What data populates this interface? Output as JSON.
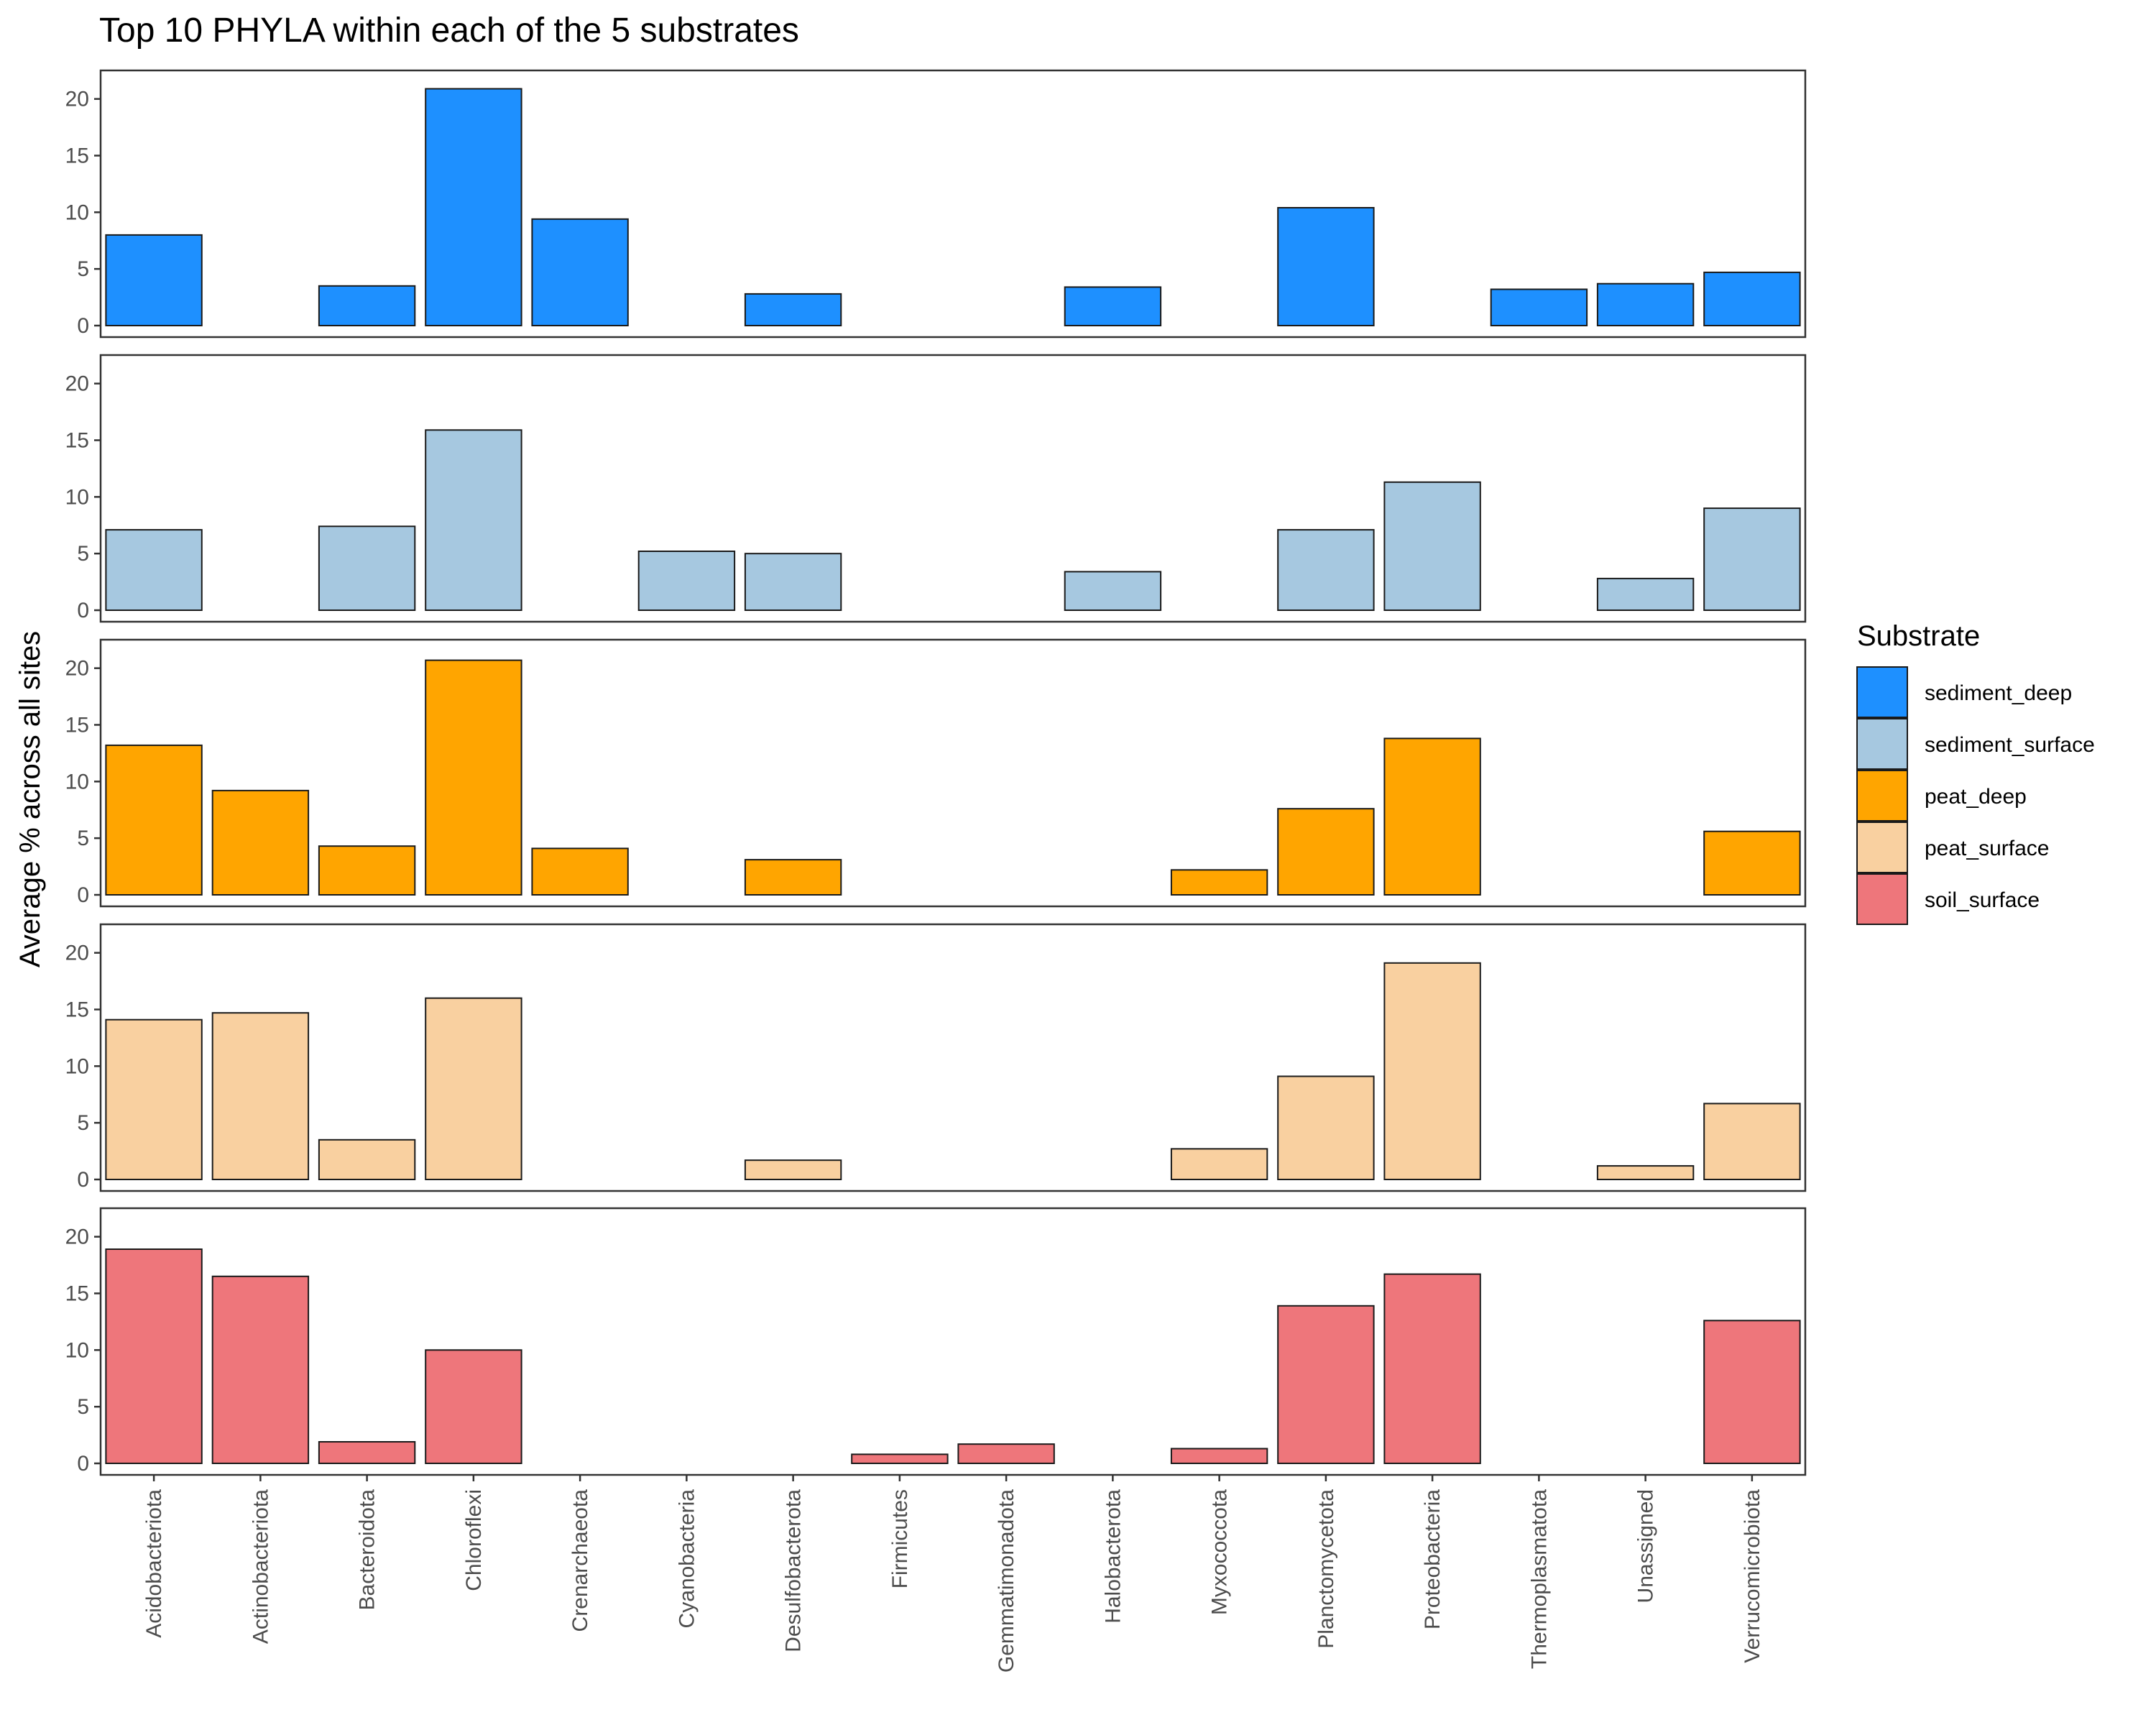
{
  "chart_data": {
    "type": "bar",
    "title": "Top 10 PHYLA within each of the 5 substrates",
    "xlabel": "",
    "ylabel": "Average % across all sites",
    "ylim": [
      0,
      21.5
    ],
    "yticks": [
      0,
      5,
      10,
      15,
      20
    ],
    "grid": false,
    "legend": {
      "title": "Substrate",
      "position": "right"
    },
    "categories": [
      "Acidobacteriota",
      "Actinobacteriota",
      "Bacteroidota",
      "Chloroflexi",
      "Crenarchaeota",
      "Cyanobacteria",
      "Desulfobacterota",
      "Firmicutes",
      "Gemmatimonadota",
      "Halobacterota",
      "Myxococcota",
      "Planctomycetota",
      "Proteobacteria",
      "Thermoplasmatota",
      "Unassigned",
      "Verrucomicrobiota"
    ],
    "series": [
      {
        "name": "sediment_deep",
        "color": "#1E90FF",
        "values": [
          8.0,
          null,
          3.5,
          20.9,
          9.4,
          null,
          2.8,
          null,
          null,
          3.4,
          null,
          10.4,
          null,
          3.2,
          3.7,
          4.7
        ]
      },
      {
        "name": "sediment_surface",
        "color": "#A6C8E0",
        "values": [
          7.1,
          null,
          7.4,
          15.9,
          null,
          5.2,
          5.0,
          null,
          null,
          3.4,
          null,
          7.1,
          11.3,
          null,
          2.8,
          9.0
        ]
      },
      {
        "name": "peat_deep",
        "color": "#FFA500",
        "values": [
          13.2,
          9.2,
          4.3,
          20.7,
          4.1,
          null,
          3.1,
          null,
          null,
          null,
          2.2,
          7.6,
          13.8,
          null,
          null,
          5.6
        ]
      },
      {
        "name": "peat_surface",
        "color": "#F9D0A0",
        "values": [
          14.1,
          14.7,
          3.5,
          16.0,
          null,
          null,
          1.7,
          null,
          null,
          null,
          2.7,
          9.1,
          19.1,
          null,
          1.2,
          6.7
        ]
      },
      {
        "name": "soil_surface",
        "color": "#EE767B",
        "values": [
          18.9,
          16.5,
          1.9,
          10.0,
          null,
          null,
          null,
          0.8,
          1.7,
          null,
          1.3,
          13.9,
          16.7,
          null,
          null,
          12.6
        ]
      }
    ]
  }
}
